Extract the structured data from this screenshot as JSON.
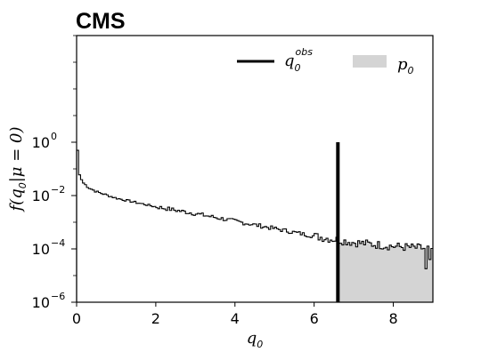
{
  "figure": {
    "experiment_label": "CMS"
  },
  "chart_data": {
    "type": "histogram",
    "xlabel": "q0",
    "ylabel": "f(q0|μ = 0)",
    "xlim": [
      0,
      9
    ],
    "ylim": [
      1e-06,
      10000
    ],
    "yscale": "log",
    "x_ticks": [
      0,
      2,
      4,
      6,
      8
    ],
    "y_ticks": [
      {
        "base": "10",
        "exp": "0",
        "value": 1
      },
      {
        "base": "10",
        "exp": "−2",
        "value": 0.01
      },
      {
        "base": "10",
        "exp": "−4",
        "value": 0.0001
      },
      {
        "base": "10",
        "exp": "−6",
        "value": 1e-06
      }
    ],
    "legend": [
      {
        "symbol": "q",
        "sub": "0",
        "sup": "obs",
        "style": "black-line"
      },
      {
        "symbol": "p",
        "sub": "0",
        "style": "grey-fill"
      }
    ],
    "q0_obs": 6.6,
    "q0_obs_height": 1,
    "p0_fill_color": "#d4d4d4",
    "histogram": {
      "bin_width": 0.05,
      "description_of_shape": "first bin ≈0.5, decaying to ~1e-4 near q0=9",
      "anchors": [
        {
          "x": 0.025,
          "y": 0.5
        },
        {
          "x": 0.075,
          "y": 0.06
        },
        {
          "x": 0.15,
          "y": 0.032
        },
        {
          "x": 0.3,
          "y": 0.02
        },
        {
          "x": 0.5,
          "y": 0.014
        },
        {
          "x": 1.0,
          "y": 0.008
        },
        {
          "x": 1.5,
          "y": 0.0055
        },
        {
          "x": 2.0,
          "y": 0.0038
        },
        {
          "x": 3.0,
          "y": 0.0021
        },
        {
          "x": 4.0,
          "y": 0.0011
        },
        {
          "x": 5.0,
          "y": 0.00058
        },
        {
          "x": 6.0,
          "y": 0.0003
        },
        {
          "x": 7.0,
          "y": 0.000175
        },
        {
          "x": 8.0,
          "y": 0.000125
        },
        {
          "x": 9.0,
          "y": 0.0001
        }
      ],
      "low_dips": [
        {
          "x": 8.8,
          "y": 1.8e-05
        },
        {
          "x": 8.95,
          "y": 4e-05
        }
      ]
    }
  }
}
